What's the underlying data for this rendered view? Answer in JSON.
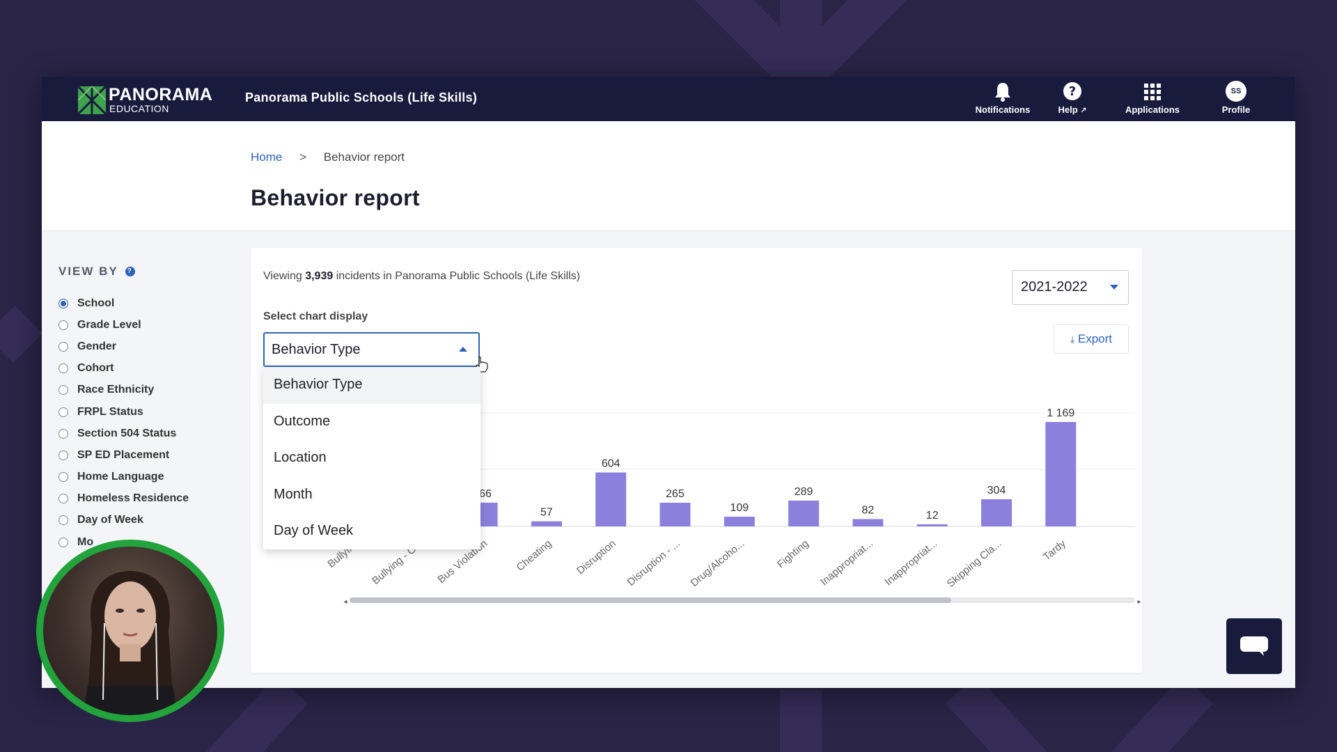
{
  "topnav": {
    "logo_primary": "PANORAMA",
    "logo_secondary": "EDUCATION",
    "district": "Panorama Public Schools (Life Skills)",
    "items": [
      {
        "label": "Notifications",
        "icon": "bell-icon"
      },
      {
        "label": "Help",
        "icon": "question-icon"
      },
      {
        "label": "Applications",
        "icon": "grid-icon"
      },
      {
        "label": "Profile",
        "icon": "avatar",
        "initials": "SS"
      }
    ]
  },
  "breadcrumb": {
    "home": "Home",
    "separator": ">",
    "current": "Behavior report"
  },
  "page_title": "Behavior report",
  "sidebar": {
    "view_by_label": "VIEW BY",
    "options": [
      {
        "label": "School",
        "checked": true
      },
      {
        "label": "Grade Level",
        "checked": false
      },
      {
        "label": "Gender",
        "checked": false
      },
      {
        "label": "Cohort",
        "checked": false
      },
      {
        "label": "Race Ethnicity",
        "checked": false
      },
      {
        "label": "FRPL Status",
        "checked": false
      },
      {
        "label": "Section 504 Status",
        "checked": false
      },
      {
        "label": "SP ED Placement",
        "checked": false
      },
      {
        "label": "Home Language",
        "checked": false
      },
      {
        "label": "Homeless Residence",
        "checked": false
      },
      {
        "label": "Day of Week",
        "checked": false
      },
      {
        "label": "Mo",
        "checked": false
      }
    ]
  },
  "main": {
    "viewing_prefix": "Viewing",
    "viewing_count": "3,939",
    "viewing_suffix": "incidents in Panorama Public Schools (Life Skills)",
    "year": "2021-2022",
    "export_label": "Export",
    "select_label": "Select chart display",
    "select_value": "Behavior Type",
    "dropdown_options": [
      "Behavior Type",
      "Outcome",
      "Location",
      "Month",
      "Day of Week"
    ]
  },
  "chart_data": {
    "type": "bar",
    "categories": [
      "Bullying",
      "Bullying - O...",
      "Bus Violation",
      "Cheating",
      "Disruption",
      "Disruption - ...",
      "Drug/Alcoho...",
      "Fighting",
      "Inappropriat...",
      "Inappropriat...",
      "Skipping Cla...",
      "Tardy"
    ],
    "values": [
      null,
      null,
      266,
      57,
      604,
      265,
      109,
      289,
      82,
      12,
      304,
      1169
    ],
    "value_labels": [
      "",
      "",
      "266",
      "57",
      "604",
      "265",
      "109",
      "289",
      "82",
      "12",
      "304",
      "1 169"
    ],
    "color": "#8c80dc",
    "grid": true
  },
  "colors": {
    "nav_bg": "#191b3d",
    "accent": "#2e62b8",
    "bar": "#8c80dc",
    "webcam_ring": "#23a33c"
  }
}
